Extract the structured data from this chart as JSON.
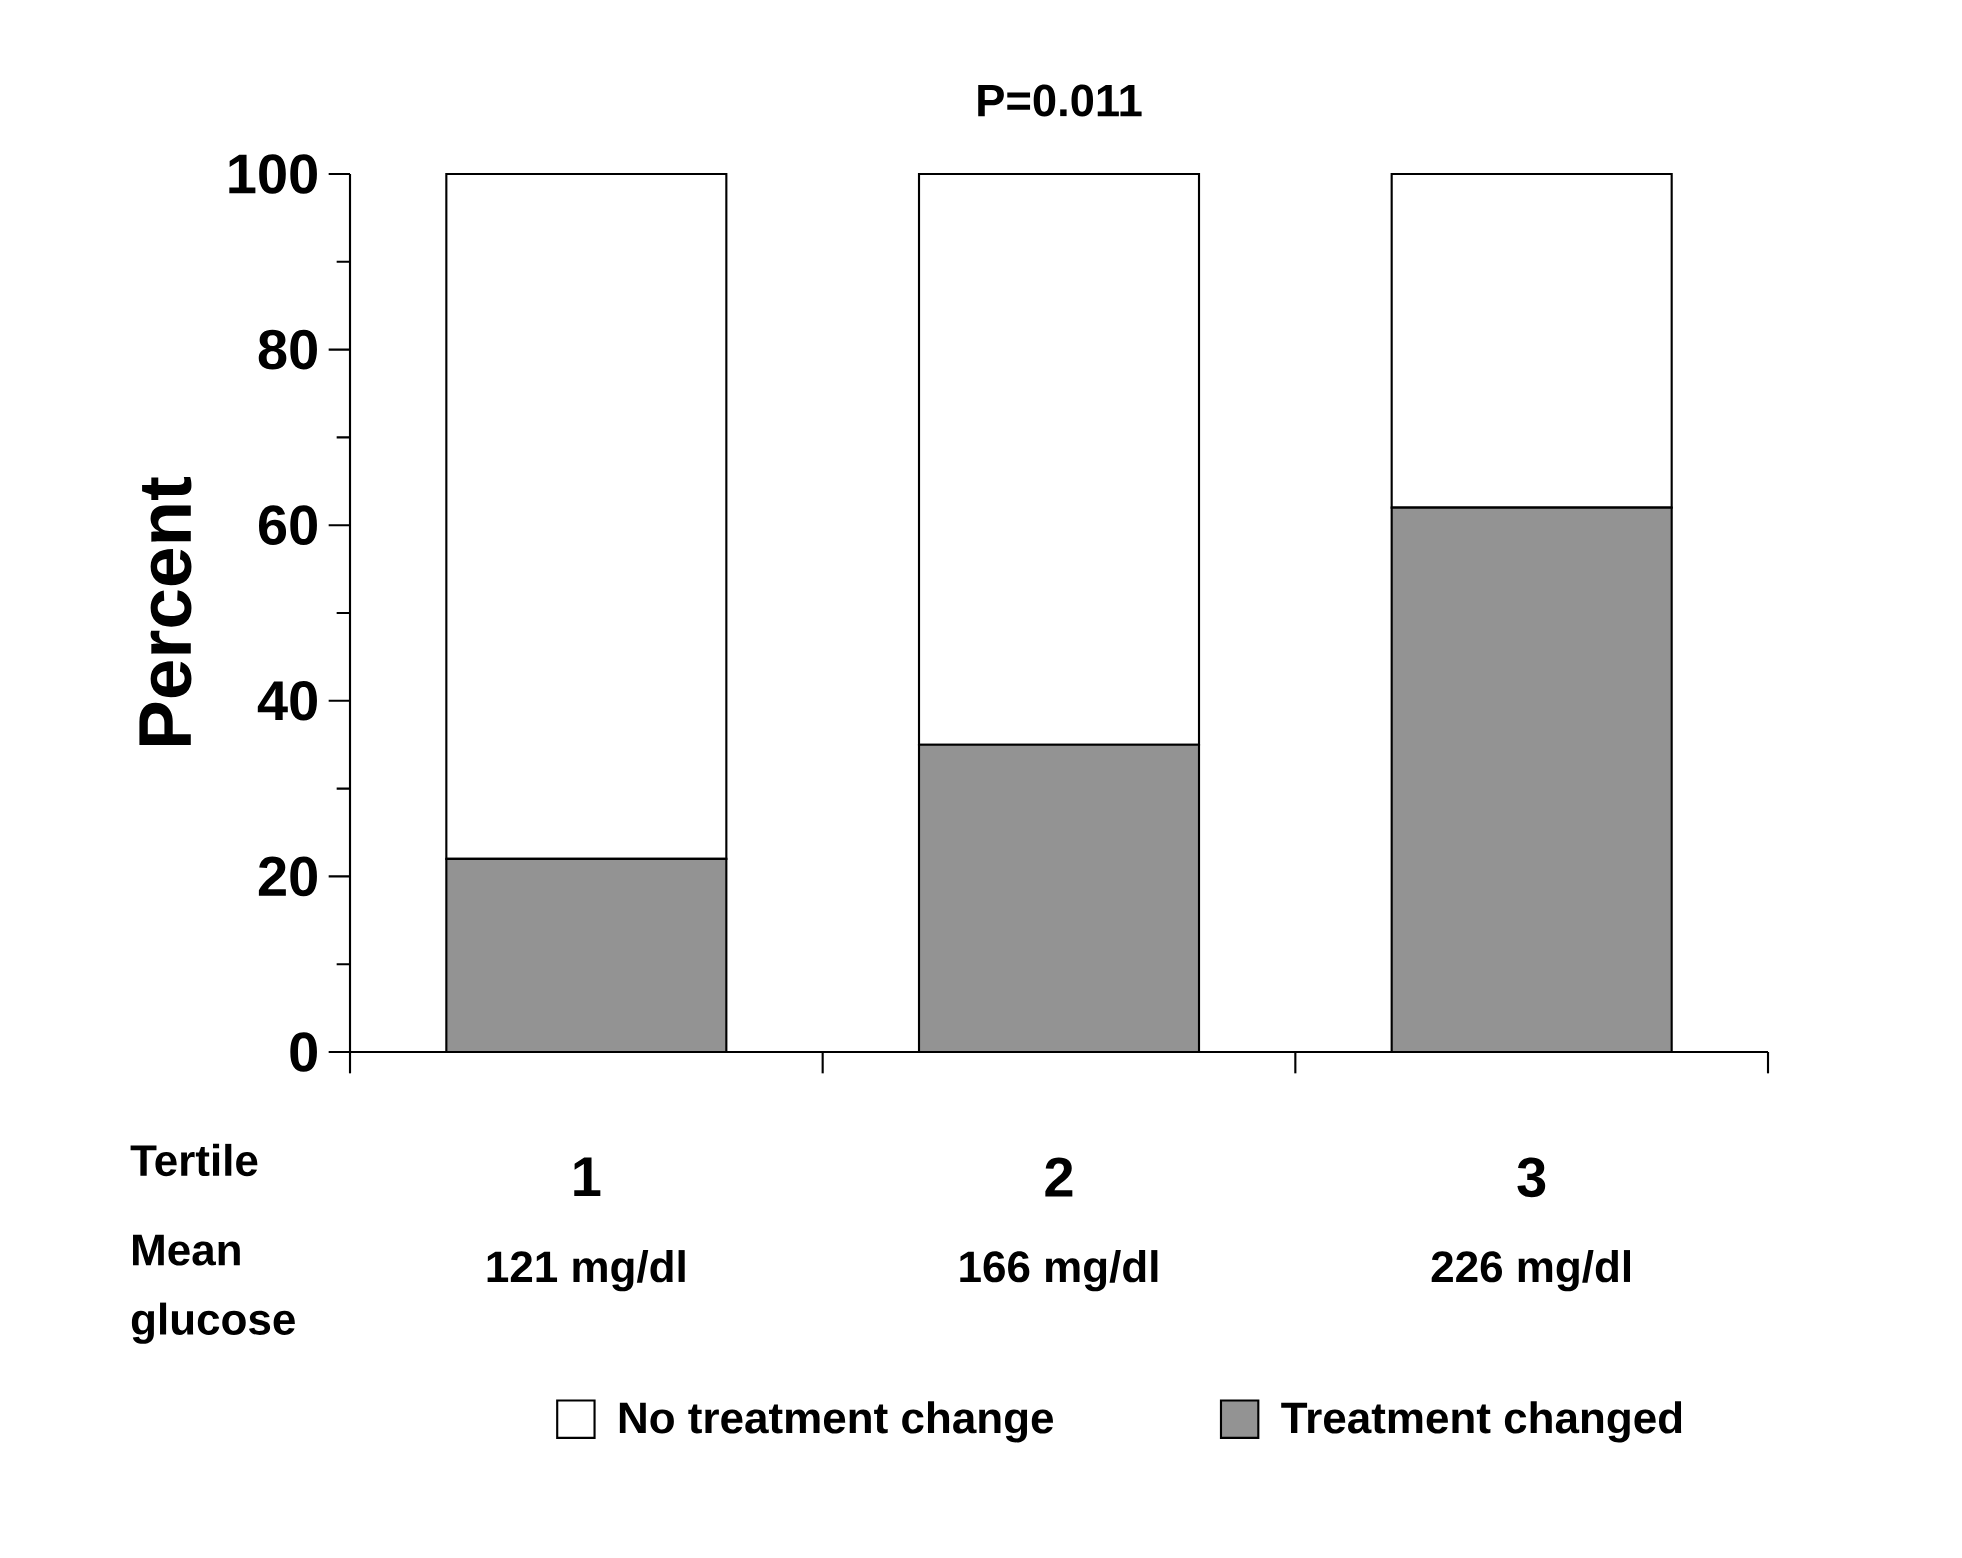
{
  "chart_data": {
    "type": "bar",
    "stacked": true,
    "title": "P=0.011",
    "xlabel": "Tertile",
    "ylabel": "Percent",
    "categories": [
      "1",
      "2",
      "3"
    ],
    "series": [
      {
        "name": "Treatment changed",
        "color": "#939393",
        "values": [
          22,
          35,
          62
        ]
      },
      {
        "name": "No treatment change",
        "color": "#ffffff",
        "values": [
          78,
          65,
          38
        ]
      }
    ],
    "ylim": [
      0,
      100
    ],
    "yticks": [
      0,
      20,
      40,
      60,
      80,
      100
    ],
    "legend": "bottom",
    "grid": false,
    "annotations": [
      "Mean glucose",
      "121 mg/dl",
      "166 mg/dl",
      "226 mg/dl"
    ]
  }
}
